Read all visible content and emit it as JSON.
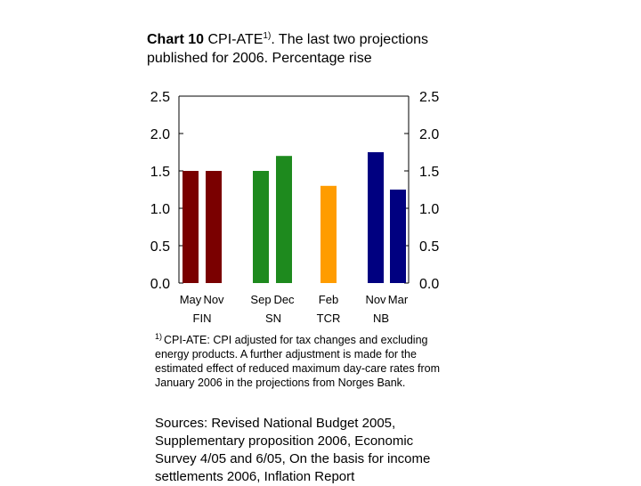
{
  "title": {
    "bold": "Chart 10",
    "text_before_sup": " CPI-ATE",
    "sup": "1)",
    "text_after_sup": ". The last two projections published for 2006. Percentage rise"
  },
  "chart_data": {
    "type": "bar",
    "ylim": [
      0,
      2.5
    ],
    "yticks": [
      "0.0",
      "0.5",
      "1.0",
      "1.5",
      "2.0",
      "2.5"
    ],
    "bars": [
      {
        "label": "May",
        "group": "FIN",
        "value": 1.5,
        "color": "#7a0000"
      },
      {
        "label": "Nov",
        "group": "FIN",
        "value": 1.5,
        "color": "#7a0000"
      },
      {
        "label": "Sep",
        "group": "SN",
        "value": 1.5,
        "color": "#1e8a1e"
      },
      {
        "label": "Dec",
        "group": "SN",
        "value": 1.7,
        "color": "#1e8a1e"
      },
      {
        "label": "Feb",
        "group": "TCR",
        "value": 1.3,
        "color": "#ff9c00"
      },
      {
        "label": "Nov",
        "group": "NB",
        "value": 1.75,
        "color": "#000080"
      },
      {
        "label": "Mar",
        "group": "NB",
        "value": 1.25,
        "color": "#000080"
      }
    ],
    "groups": [
      "FIN",
      "SN",
      "TCR",
      "NB"
    ]
  },
  "footnote": {
    "marker": "1)",
    "text": "CPI-ATE: CPI adjusted for tax changes and excluding energy products. A further adjustment is made for the estimated effect of reduced maximum day-care rates from January 2006 in the projections from Norges Bank."
  },
  "sources": "Sources: Revised National Budget 2005, Supplementary proposition 2006, Economic Survey 4/05 and 6/05, On the basis for income settlements 2006, Inflation Report"
}
